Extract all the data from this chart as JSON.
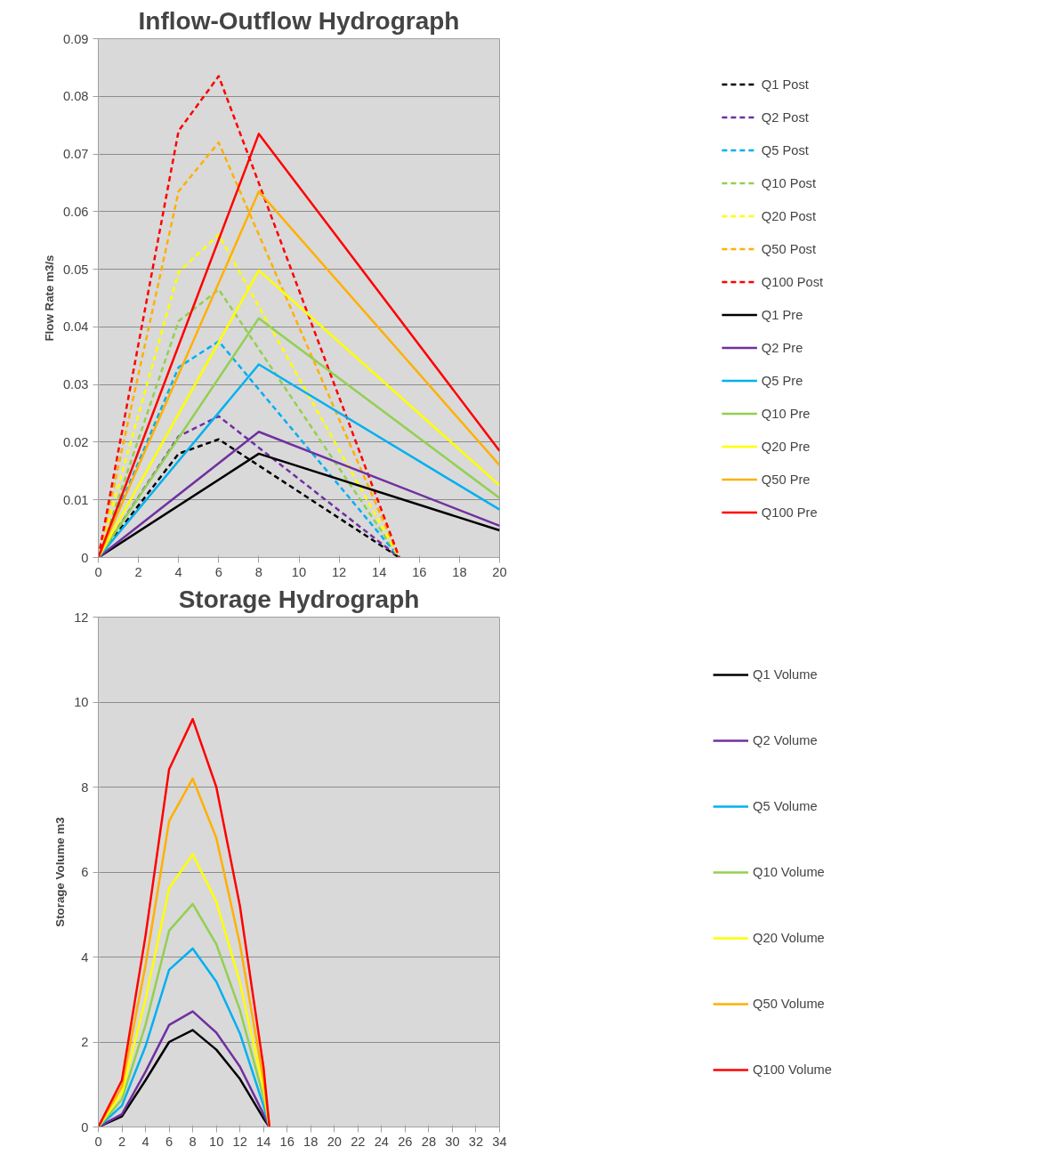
{
  "chart_data": [
    {
      "type": "line",
      "title": "Inflow-Outflow Hydrograph",
      "ylabel": "Flow Rate m3/s",
      "xlim": [
        0,
        20
      ],
      "ylim": [
        0,
        0.09
      ],
      "xticks": [
        0,
        2,
        4,
        6,
        8,
        10,
        12,
        14,
        16,
        18,
        20
      ],
      "yticks": [
        0,
        0.01,
        0.02,
        0.03,
        0.04,
        0.05,
        0.06,
        0.07,
        0.08,
        0.09
      ],
      "grid": "y",
      "legend": "right",
      "marker": "none",
      "series": [
        {
          "name": "Q1 Post",
          "color": "#000000",
          "line_style": "dashed",
          "x": [
            0,
            4,
            6,
            15
          ],
          "values": [
            0,
            0.018,
            0.0205,
            0
          ]
        },
        {
          "name": "Q2 Post",
          "color": "#7030a0",
          "line_style": "dashed",
          "x": [
            0,
            4,
            6,
            15
          ],
          "values": [
            0,
            0.021,
            0.0245,
            0
          ]
        },
        {
          "name": "Q5 Post",
          "color": "#00b0f0",
          "line_style": "dashed",
          "x": [
            0,
            4,
            6,
            15
          ],
          "values": [
            0,
            0.033,
            0.0375,
            0
          ]
        },
        {
          "name": "Q10 Post",
          "color": "#92d050",
          "line_style": "dashed",
          "x": [
            0,
            4,
            6,
            15
          ],
          "values": [
            0,
            0.041,
            0.0465,
            0
          ]
        },
        {
          "name": "Q20 Post",
          "color": "#ffff00",
          "line_style": "dashed",
          "x": [
            0,
            4,
            6,
            15
          ],
          "values": [
            0,
            0.0495,
            0.056,
            0
          ]
        },
        {
          "name": "Q50 Post",
          "color": "#ffb000",
          "line_style": "dashed",
          "x": [
            0,
            4,
            6,
            15
          ],
          "values": [
            0,
            0.0635,
            0.072,
            0
          ]
        },
        {
          "name": "Q100 Post",
          "color": "#ff0000",
          "line_style": "dashed",
          "x": [
            0,
            4,
            6,
            15
          ],
          "values": [
            0,
            0.074,
            0.0835,
            0
          ]
        },
        {
          "name": "Q1 Pre",
          "color": "#000000",
          "line_style": "solid",
          "x": [
            0,
            8,
            20
          ],
          "values": [
            0,
            0.018,
            0.0047
          ]
        },
        {
          "name": "Q2 Pre",
          "color": "#7030a0",
          "line_style": "solid",
          "x": [
            0,
            8,
            20
          ],
          "values": [
            0,
            0.0218,
            0.0055
          ]
        },
        {
          "name": "Q5 Pre",
          "color": "#00b0f0",
          "line_style": "solid",
          "x": [
            0,
            8,
            20
          ],
          "values": [
            0,
            0.0335,
            0.0083
          ]
        },
        {
          "name": "Q10 Pre",
          "color": "#92d050",
          "line_style": "solid",
          "x": [
            0,
            8,
            20
          ],
          "values": [
            0,
            0.0415,
            0.0103
          ]
        },
        {
          "name": "Q20 Pre",
          "color": "#ffff00",
          "line_style": "solid",
          "x": [
            0,
            8,
            20
          ],
          "values": [
            0,
            0.0498,
            0.0125
          ]
        },
        {
          "name": "Q50 Pre",
          "color": "#ffb000",
          "line_style": "solid",
          "x": [
            0,
            8,
            20
          ],
          "values": [
            0,
            0.0635,
            0.016
          ]
        },
        {
          "name": "Q100 Pre",
          "color": "#ff0000",
          "line_style": "solid",
          "x": [
            0,
            8,
            20
          ],
          "values": [
            0,
            0.0735,
            0.0185
          ]
        }
      ]
    },
    {
      "type": "line",
      "title": "Storage Hydrograph",
      "ylabel": "Storage Volume m3",
      "xlim": [
        0,
        34
      ],
      "ylim": [
        0,
        12
      ],
      "xticks": [
        0,
        2,
        4,
        6,
        8,
        10,
        12,
        14,
        16,
        18,
        20,
        22,
        24,
        26,
        28,
        30,
        32,
        34
      ],
      "yticks": [
        0,
        2,
        4,
        6,
        8,
        10,
        12
      ],
      "grid": "y",
      "legend": "right",
      "marker": "none",
      "line_style": "solid",
      "x": [
        0,
        2,
        4,
        6,
        8,
        10,
        12,
        14,
        14.5
      ],
      "series": [
        {
          "name": "Q1 Volume",
          "color": "#000000",
          "values": [
            0,
            0.25,
            1.1,
            2.0,
            2.28,
            1.82,
            1.13,
            0.2,
            0
          ]
        },
        {
          "name": "Q2 Volume",
          "color": "#7030a0",
          "values": [
            0,
            0.3,
            1.3,
            2.4,
            2.72,
            2.22,
            1.42,
            0.3,
            0
          ]
        },
        {
          "name": "Q5 Volume",
          "color": "#00b0f0",
          "values": [
            0,
            0.5,
            1.9,
            3.7,
            4.2,
            3.42,
            2.2,
            0.5,
            0
          ]
        },
        {
          "name": "Q10 Volume",
          "color": "#92d050",
          "values": [
            0,
            0.65,
            2.4,
            4.62,
            5.25,
            4.3,
            2.75,
            0.7,
            0
          ]
        },
        {
          "name": "Q20 Volume",
          "color": "#ffff00",
          "values": [
            0,
            0.8,
            3.0,
            5.62,
            6.42,
            5.3,
            3.4,
            0.9,
            0
          ]
        },
        {
          "name": "Q50 Volume",
          "color": "#ffb000",
          "values": [
            0,
            0.95,
            3.8,
            7.2,
            8.2,
            6.8,
            4.3,
            1.1,
            0
          ]
        },
        {
          "name": "Q100 Volume",
          "color": "#ff0000",
          "values": [
            0,
            1.1,
            4.5,
            8.42,
            9.6,
            8.0,
            5.2,
            1.4,
            0
          ]
        }
      ]
    }
  ]
}
